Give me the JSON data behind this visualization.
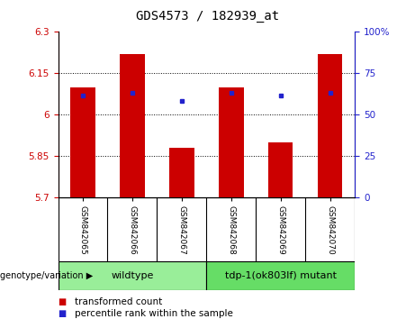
{
  "title": "GDS4573 / 182939_at",
  "categories": [
    "GSM842065",
    "GSM842066",
    "GSM842067",
    "GSM842068",
    "GSM842069",
    "GSM842070"
  ],
  "bar_values": [
    6.1,
    6.22,
    5.88,
    6.1,
    5.9,
    6.22
  ],
  "blue_values": [
    6.07,
    6.08,
    6.05,
    6.08,
    6.07,
    6.08
  ],
  "y_min": 5.7,
  "y_max": 6.3,
  "y_ticks": [
    5.7,
    5.85,
    6.0,
    6.15,
    6.3
  ],
  "y_tick_labels": [
    "5.7",
    "5.85",
    "6",
    "6.15",
    "6.3"
  ],
  "y2_ticks": [
    0,
    25,
    50,
    75,
    100
  ],
  "y2_tick_labels": [
    "0",
    "25",
    "50",
    "75",
    "100%"
  ],
  "bar_color": "#cc0000",
  "blue_color": "#2222cc",
  "groups": [
    {
      "label": "wildtype",
      "span": [
        0,
        3
      ],
      "color": "#99ee99"
    },
    {
      "label": "tdp-1(ok803lf) mutant",
      "span": [
        3,
        6
      ],
      "color": "#66dd66"
    }
  ],
  "legend_items": [
    {
      "label": "transformed count",
      "color": "#cc0000"
    },
    {
      "label": "percentile rank within the sample",
      "color": "#2222cc"
    }
  ],
  "genotype_label": "genotype/variation",
  "gray_box_color": "#c0c0c0",
  "title_fontsize": 10,
  "tick_fontsize": 7.5,
  "cat_fontsize": 6.5,
  "legend_fontsize": 7.5,
  "group_fontsize": 8
}
